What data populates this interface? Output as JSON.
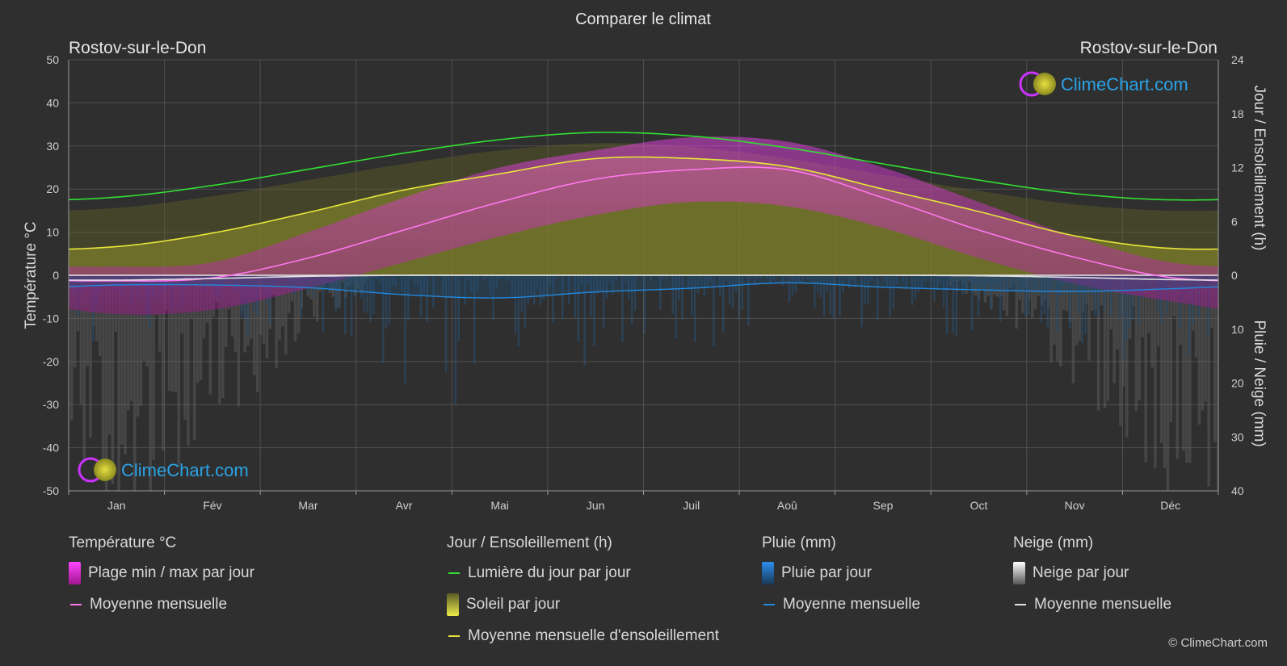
{
  "header": {
    "title": "Comparer le climat",
    "location_left": "Rostov-sur-le-Don",
    "location_right": "Rostov-sur-le-Don"
  },
  "logo": {
    "text": "ClimeChart.com"
  },
  "copyright": "© ClimeChart.com",
  "colors": {
    "background": "#2f2f2f",
    "grid": "#6a6a6a",
    "daylight": "#33dd33",
    "sunshine_mean": "#e6e63a",
    "sunshine_fill": "#8c8c2a",
    "temp_mean": "#ff77ee",
    "temp_range": "#d81fd0",
    "rain": "#2288dd",
    "snow": "#e0e0e0",
    "logo_text": "#2aa3e6"
  },
  "legend": {
    "temperature": {
      "title": "Température °C",
      "range_label": "Plage min / max par jour",
      "mean_label": "Moyenne mensuelle"
    },
    "sun": {
      "title": "Jour / Ensoleillement (h)",
      "daylight_label": "Lumière du jour par jour",
      "sun_label": "Soleil par jour",
      "sun_mean_label": "Moyenne mensuelle d'ensoleillement"
    },
    "rain": {
      "title": "Pluie (mm)",
      "rain_label": "Pluie par jour",
      "mean_label": "Moyenne mensuelle"
    },
    "snow": {
      "title": "Neige (mm)",
      "snow_label": "Neige par jour",
      "mean_label": "Moyenne mensuelle"
    }
  },
  "chart_data": {
    "type": "line",
    "categories": [
      "Jan",
      "Fév",
      "Mar",
      "Avr",
      "Mai",
      "Jun",
      "Juil",
      "Aoû",
      "Sep",
      "Oct",
      "Nov",
      "Déc"
    ],
    "y_left": {
      "label": "Température °C",
      "range": [
        -50,
        50
      ],
      "ticks": [
        50,
        40,
        30,
        20,
        10,
        0,
        -10,
        -20,
        -30,
        -40,
        -50
      ]
    },
    "y_right_top": {
      "label": "Jour / Ensoleillement (h)",
      "range": [
        0,
        24
      ],
      "ticks": [
        24,
        18,
        12,
        6,
        0
      ]
    },
    "y_right_bottom": {
      "label": "Pluie / Neige (mm)",
      "range": [
        0,
        40
      ],
      "ticks": [
        10,
        20,
        30,
        40
      ]
    },
    "grid": true,
    "series": [
      {
        "name": "Lumière du jour par jour",
        "axis": "hours",
        "values": [
          8.7,
          10.0,
          11.8,
          13.6,
          15.1,
          15.9,
          15.5,
          14.2,
          12.4,
          10.6,
          9.1,
          8.4
        ]
      },
      {
        "name": "Moyenne mensuelle d'ensoleillement",
        "axis": "hours",
        "values": [
          3.2,
          4.7,
          7.0,
          9.5,
          11.3,
          13.0,
          13.0,
          12.1,
          9.6,
          7.1,
          4.4,
          3.0
        ]
      },
      {
        "name": "Moyenne mensuelle",
        "kind": "temperature",
        "axis": "temp",
        "values": [
          -1.3,
          -0.6,
          4.0,
          10.5,
          17.0,
          22.3,
          24.5,
          24.5,
          18.0,
          10.5,
          4.2,
          -0.5
        ]
      },
      {
        "name": "Moyenne mensuelle",
        "kind": "rain",
        "axis": "precip",
        "values": [
          1.8,
          1.8,
          2.3,
          3.6,
          4.2,
          3.1,
          2.4,
          1.4,
          2.2,
          2.7,
          3.0,
          2.5
        ]
      },
      {
        "name": "Moyenne mensuelle",
        "kind": "snow",
        "axis": "precip",
        "values": [
          0.9,
          0.6,
          0.2,
          0.0,
          0.0,
          0.0,
          0.0,
          0.0,
          0.0,
          0.1,
          0.4,
          0.8
        ]
      }
    ],
    "temp_range": {
      "name": "Plage min / max par jour",
      "max": [
        2,
        3,
        10,
        18,
        25,
        29,
        32,
        31,
        25,
        17,
        9,
        3
      ],
      "min": [
        -9,
        -8,
        -3,
        3,
        9,
        14,
        17,
        16,
        11,
        4,
        -2,
        -6
      ]
    }
  }
}
